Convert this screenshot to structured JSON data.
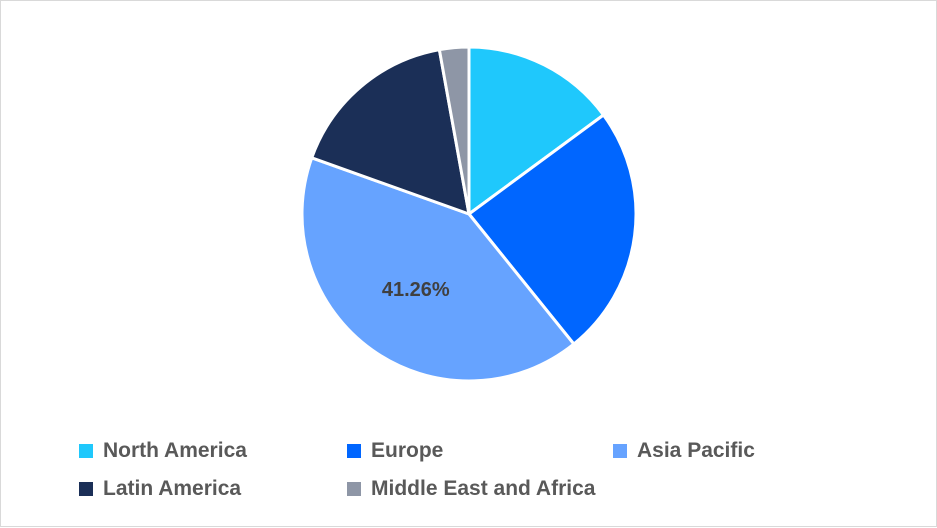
{
  "chart_data": {
    "type": "pie",
    "title": "",
    "series": [
      {
        "name": "North America",
        "value": 14.9,
        "color": "#1FC8FC"
      },
      {
        "name": "Europe",
        "value": 24.3,
        "color": "#0066FF"
      },
      {
        "name": "Asia Pacific",
        "value": 41.26,
        "color": "#66A3FF"
      },
      {
        "name": "Latin America",
        "value": 16.7,
        "color": "#1B2F57"
      },
      {
        "name": "Middle East and Africa",
        "value": 2.84,
        "color": "#8E96A6"
      }
    ],
    "data_labels": [
      {
        "series": "Asia Pacific",
        "text": "41.26%"
      }
    ],
    "start_angle_deg": 0,
    "direction": "clockwise",
    "legend_placement": "bottom"
  }
}
